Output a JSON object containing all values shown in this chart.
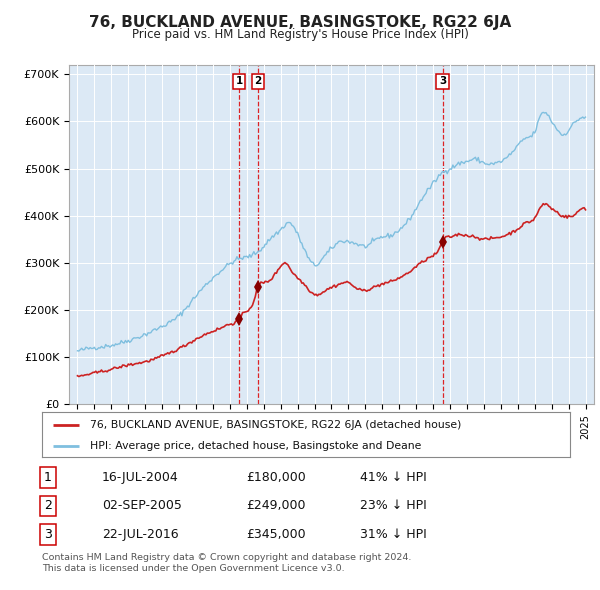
{
  "title": "76, BUCKLAND AVENUE, BASINGSTOKE, RG22 6JA",
  "subtitle": "Price paid vs. HM Land Registry's House Price Index (HPI)",
  "plot_bg_color": "#dce9f5",
  "red_line_label": "76, BUCKLAND AVENUE, BASINGSTOKE, RG22 6JA (detached house)",
  "blue_line_label": "HPI: Average price, detached house, Basingstoke and Deane",
  "footer": "Contains HM Land Registry data © Crown copyright and database right 2024.\nThis data is licensed under the Open Government Licence v3.0.",
  "transactions": [
    {
      "num": "1",
      "date": "16-JUL-2004",
      "price": "£180,000",
      "pct": "41% ↓ HPI",
      "year": 2004.542
    },
    {
      "num": "2",
      "date": "02-SEP-2005",
      "price": "£249,000",
      "pct": "23% ↓ HPI",
      "year": 2005.667
    },
    {
      "num": "3",
      "date": "22-JUL-2016",
      "price": "£345,000",
      "pct": "31% ↓ HPI",
      "year": 2016.556
    }
  ],
  "sale_vals": [
    180000,
    249000,
    345000
  ],
  "ylim": [
    0,
    720000
  ],
  "yticks": [
    0,
    100000,
    200000,
    300000,
    400000,
    500000,
    600000,
    700000
  ],
  "ytick_labels": [
    "£0",
    "£100K",
    "£200K",
    "£300K",
    "£400K",
    "£500K",
    "£600K",
    "£700K"
  ],
  "xlim_left": 1994.5,
  "xlim_right": 2025.5,
  "xstart_year": 1995,
  "xend_year": 2025
}
